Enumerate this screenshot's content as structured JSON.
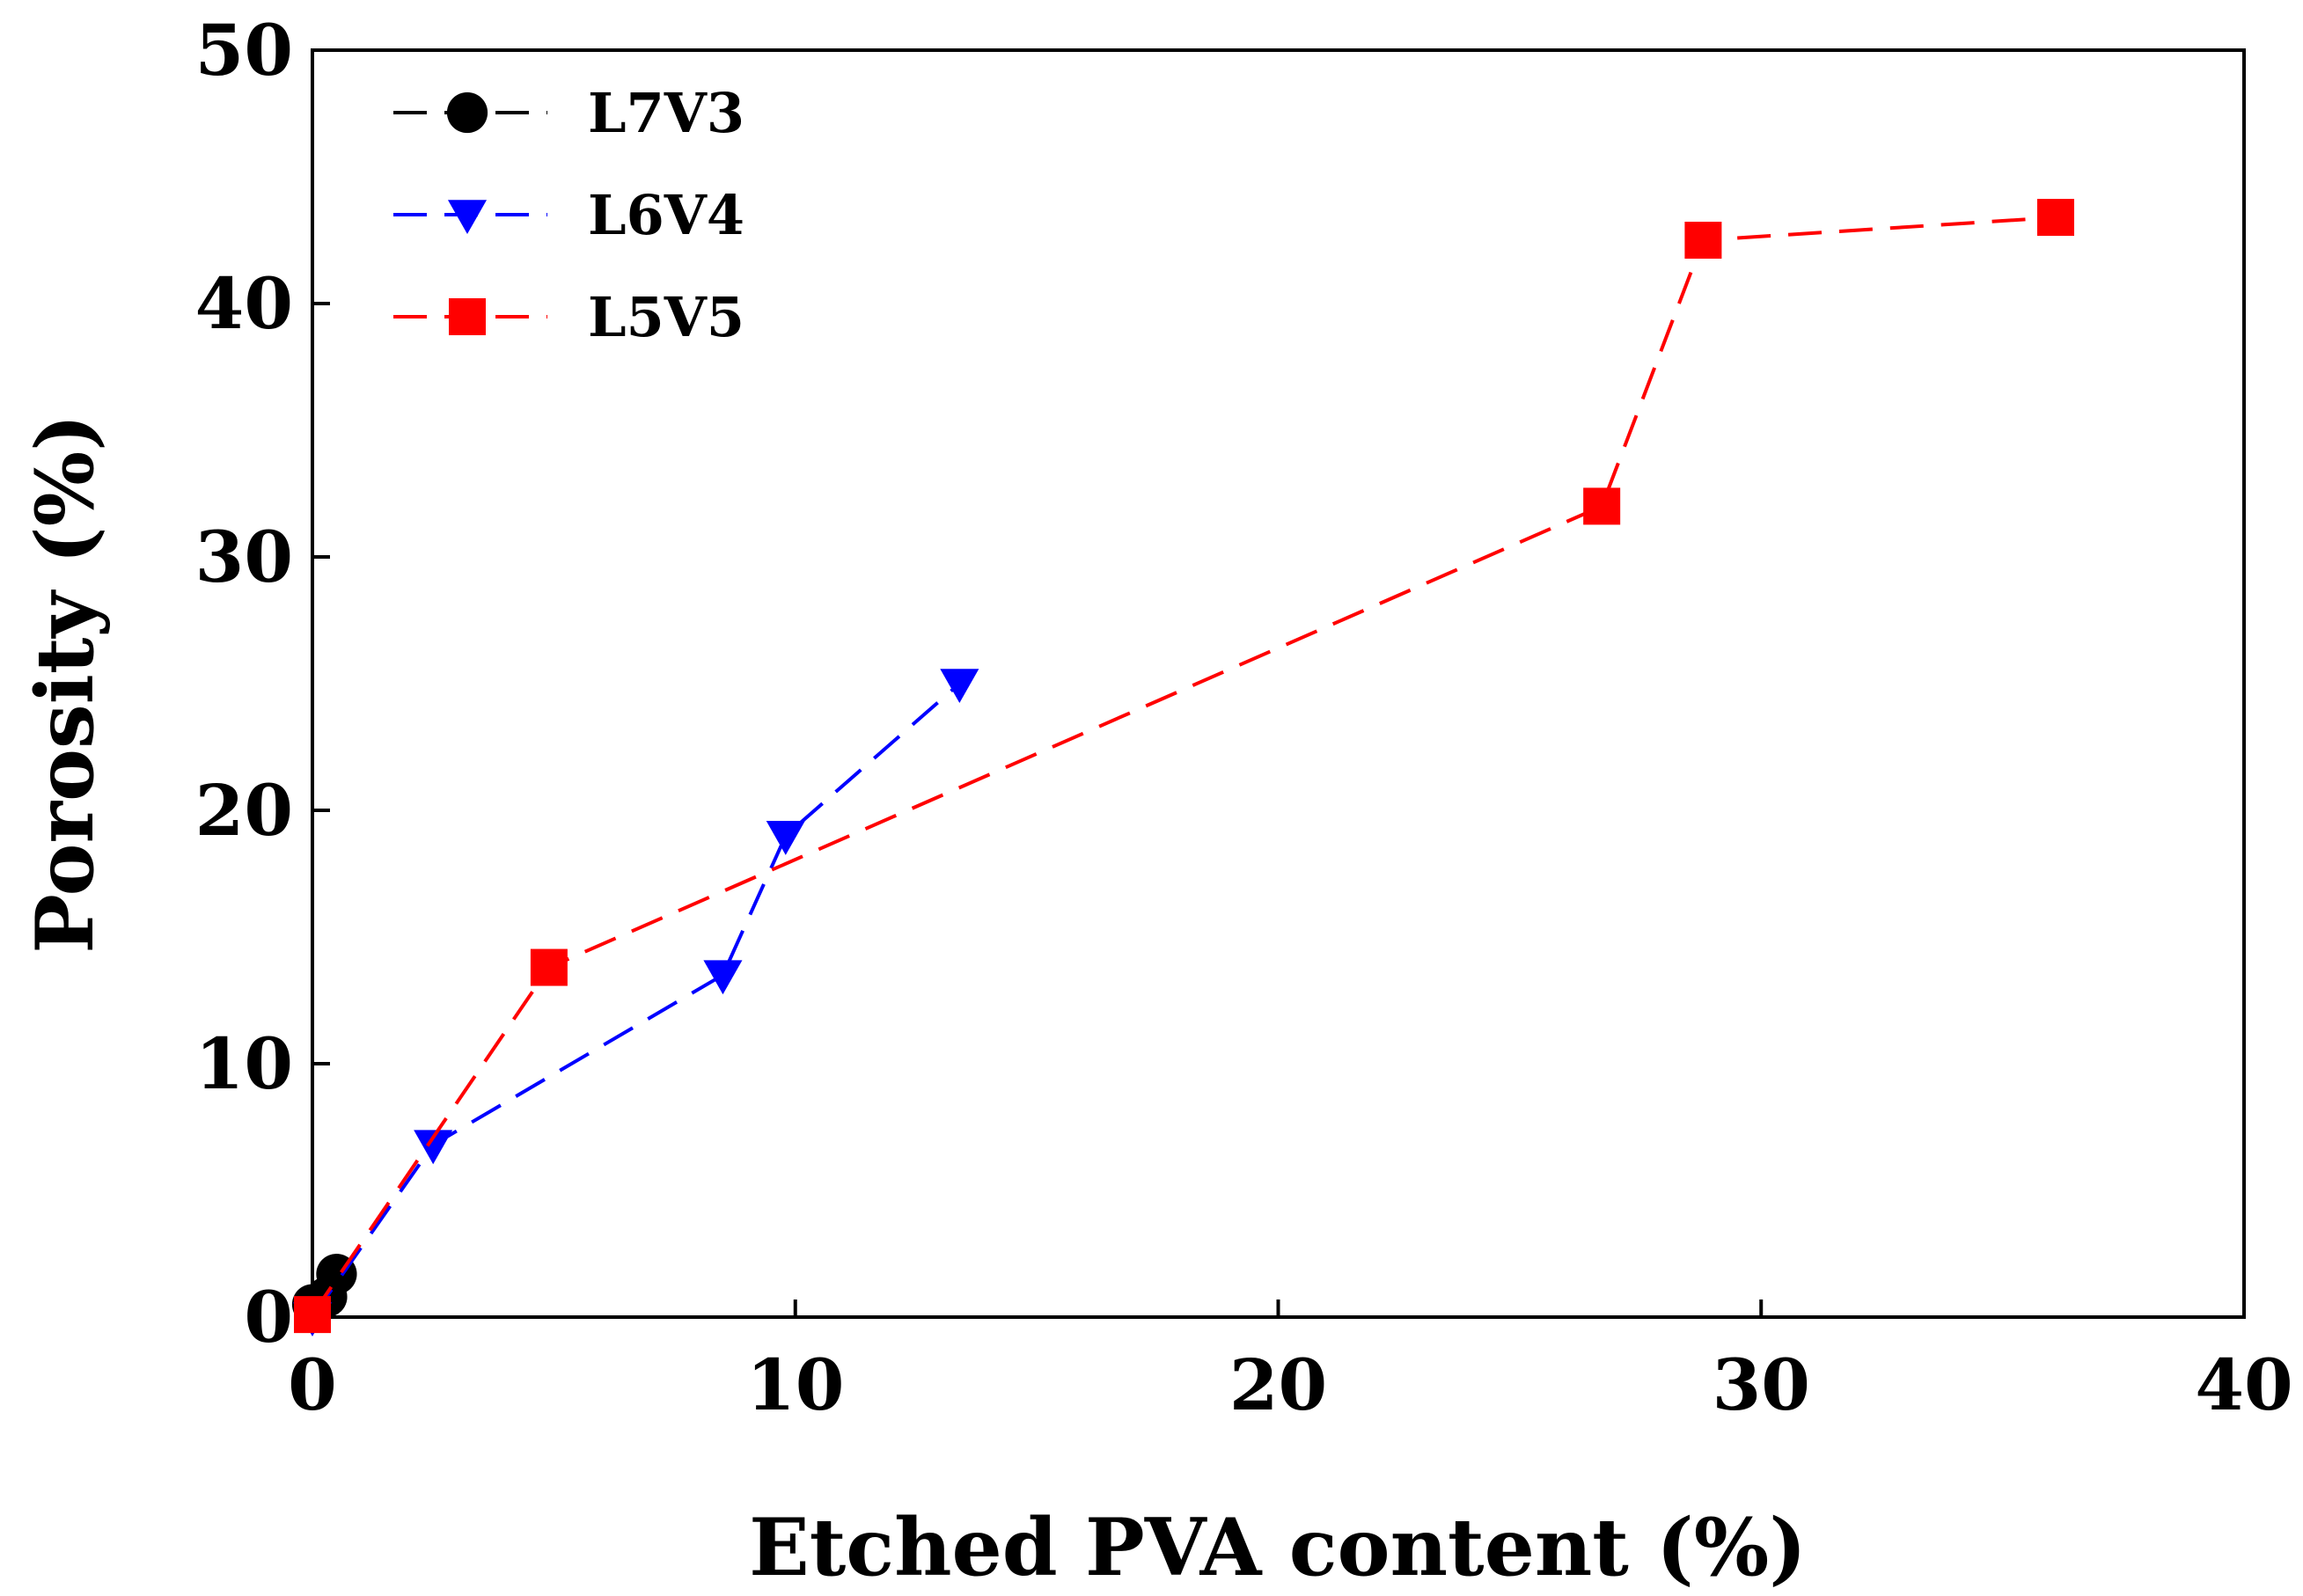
{
  "chart_data": {
    "type": "scatter",
    "title": "",
    "xlabel": "Etched PVA content (%)",
    "ylabel": "Porosity (%)",
    "xlim": [
      0,
      40
    ],
    "ylim": [
      0,
      50
    ],
    "xticks": [
      0,
      10,
      20,
      30,
      40
    ],
    "yticks": [
      0,
      10,
      20,
      30,
      40,
      50
    ],
    "grid": false,
    "legend_position": "top-left",
    "series": [
      {
        "name": "L7V3",
        "color": "#000000",
        "marker": "circle",
        "line": "dashed",
        "x": [
          0.0,
          0.3,
          0.5
        ],
        "y": [
          0.5,
          0.8,
          1.7
        ]
      },
      {
        "name": "L6V4",
        "color": "#0000ff",
        "marker": "triangle-down",
        "line": "dashed",
        "x": [
          0.0,
          2.5,
          8.5,
          9.8,
          13.4
        ],
        "y": [
          0.0,
          6.8,
          13.5,
          19.0,
          25.0
        ]
      },
      {
        "name": "L5V5",
        "color": "#ff0000",
        "marker": "square",
        "line": "dashed",
        "x": [
          0.0,
          4.9,
          26.7,
          28.8,
          36.1
        ],
        "y": [
          0.1,
          13.8,
          32.0,
          42.5,
          43.4
        ]
      }
    ]
  }
}
